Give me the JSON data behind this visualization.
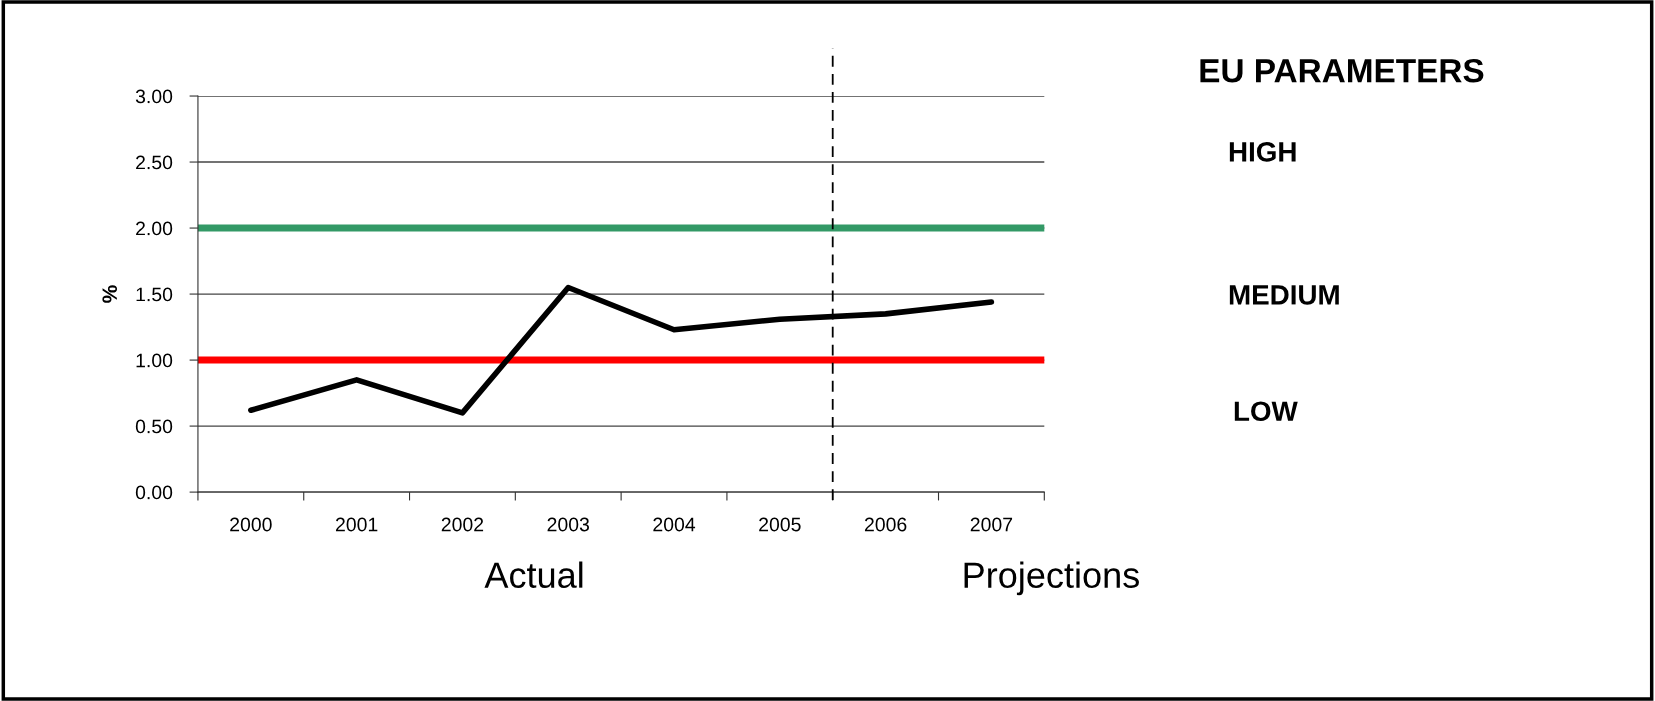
{
  "chart_data": {
    "type": "line",
    "ylabel": "%",
    "x": [
      2000,
      2001,
      2002,
      2003,
      2004,
      2005,
      2006,
      2007
    ],
    "series": [
      {
        "color": "#000000",
        "values": [
          0.62,
          0.85,
          0.6,
          1.55,
          1.23,
          1.31,
          1.35,
          1.44
        ]
      }
    ],
    "xlim": [
      1999.5,
      2007.5
    ],
    "xticks": [
      {
        "value": 1999.5,
        "label": null
      },
      {
        "value": 2000.5,
        "label": null
      },
      {
        "value": 2001.5,
        "label": null
      },
      {
        "value": 2002.5,
        "label": null
      },
      {
        "value": 2003.5,
        "label": null
      },
      {
        "value": 2004.5,
        "label": null
      },
      {
        "value": 2005.5,
        "label": null
      },
      {
        "value": 2006.5,
        "label": null
      },
      {
        "value": 2007.5,
        "label": null
      },
      2000,
      2001,
      2002,
      2003,
      2004,
      2005,
      2006,
      2007
    ],
    "ylim": [
      0,
      3
    ],
    "yticks": [
      {
        "value": 0,
        "label": "0.00"
      },
      {
        "value": 0.5,
        "label": "0.50"
      },
      {
        "value": 1,
        "label": "1.00"
      },
      {
        "value": 1.5,
        "label": "1.50"
      },
      {
        "value": 2,
        "label": "2.00"
      },
      {
        "value": 2.5,
        "label": "2.50"
      },
      {
        "value": 3,
        "label": "3.00"
      }
    ],
    "ref_lines": [
      {
        "axis": "y",
        "value": 2,
        "color": "#339966"
      },
      {
        "axis": "y",
        "value": 1,
        "color": "#ff0000"
      },
      {
        "axis": "x",
        "value": 2005.5,
        "color": "#000000",
        "line_style": "dashed"
      }
    ],
    "grid": "y",
    "legend": false,
    "marker": "none",
    "line_style": "solid",
    "annotations": [
      "EU PARAMETERS",
      "HIGH",
      "MEDIUM",
      "LOW",
      "Actual",
      "Projections"
    ]
  }
}
